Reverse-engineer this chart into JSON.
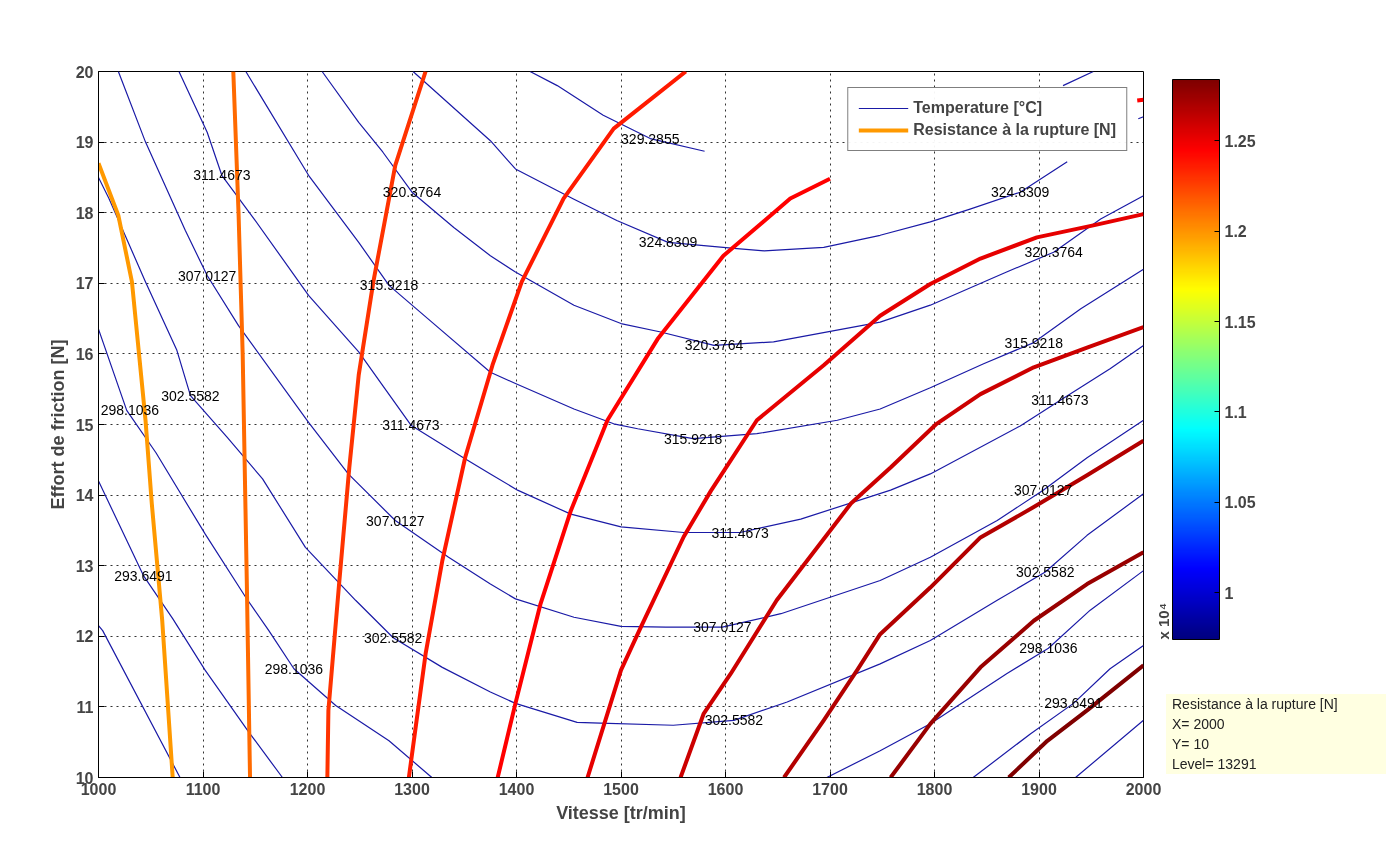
{
  "chart_data": {
    "type": "line",
    "xlabel": "Vitesse [tr/min]",
    "ylabel": "Effort de friction [N]",
    "clabel": "x 10⁴",
    "xlim": [
      1000,
      2000
    ],
    "ylim": [
      10,
      20
    ],
    "xticks": [
      1000,
      1100,
      1200,
      1300,
      1400,
      1500,
      1600,
      1700,
      1800,
      1900,
      2000
    ],
    "yticks": [
      10,
      11,
      12,
      13,
      14,
      15,
      16,
      17,
      18,
      19,
      20
    ],
    "clim": [
      0.974,
      1.284
    ],
    "cticks": [
      1,
      1.05,
      1.1,
      1.15,
      1.2,
      1.25
    ],
    "grid": true,
    "legend": "top right",
    "marker": "none",
    "line_style": "solid",
    "series": [
      {
        "name": "Temperature [°C]",
        "color": "#1a1aa6",
        "x": [
          1000,
          1004,
          1078,
          null,
          1935,
          2000
        ],
        "values": [
          12.15,
          12.08,
          10.0,
          null,
          10.0,
          10.81
        ]
      },
      {
        "color": "#1a1aa6",
        "x": [
          1000,
          1043,
          1071,
          1102,
          1144,
          1176,
          null,
          1837,
          1892,
          1933,
          1968,
          2000
        ],
        "values": [
          14.2,
          12.86,
          12.25,
          11.52,
          10.64,
          10.0,
          null,
          10.0,
          10.62,
          11.05,
          11.54,
          11.87
        ]
      },
      {
        "color": "#1a1aa6",
        "x": [
          1000,
          1027,
          1055,
          1102,
          1141,
          1163,
          1187,
          1227,
          1278,
          1319,
          null,
          1697,
          1748,
          1796,
          1869,
          1909,
          1949,
          2000
        ],
        "values": [
          16.35,
          15.2,
          14.6,
          13.45,
          12.55,
          12.08,
          11.54,
          11.02,
          10.52,
          10.0,
          null,
          10.0,
          10.38,
          10.76,
          11.47,
          11.83,
          12.37,
          12.93
        ]
      },
      {
        "color": "#1a1aa6",
        "x": [
          1000,
          1010,
          1045,
          1075,
          1088,
          1123,
          1157,
          1198,
          1246,
          1282,
          1329,
          1375,
          1399,
          1458,
          1480,
          1550,
          1608,
          1659,
          1748,
          1796,
          1860,
          1906,
          1946,
          2000
        ],
        "values": [
          18.5,
          18.2,
          17.02,
          16.05,
          15.41,
          14.82,
          14.23,
          13.26,
          12.51,
          11.98,
          11.56,
          11.21,
          11.05,
          10.78,
          10.77,
          10.74,
          10.81,
          11.07,
          11.61,
          11.94,
          12.51,
          12.91,
          13.43,
          14.02
        ]
      },
      {
        "color": "#1a1aa6",
        "x": [
          1019,
          1045,
          1083,
          1104,
          1134,
          1201,
          1239,
          1284,
          1335,
          1375,
          1399,
          1455,
          1500,
          1543,
          1597,
          1653,
          1748,
          1796,
          1860,
          1904,
          1946,
          2000
        ],
        "values": [
          20.0,
          19.0,
          17.75,
          17.11,
          16.4,
          15.03,
          14.3,
          13.64,
          13.12,
          12.74,
          12.53,
          12.27,
          12.14,
          12.13,
          12.13,
          12.32,
          12.79,
          13.12,
          13.64,
          14.07,
          14.53,
          15.06
        ]
      },
      {
        "color": "#1a1aa6",
        "x": [
          1077,
          1104,
          1118,
          1149,
          1201,
          1249,
          1272,
          1299,
          1348,
          1375,
          1401,
          1452,
          1500,
          1560,
          1614,
          1672,
          1758,
          1796,
          1882,
          1920,
          1968,
          2000
        ],
        "values": [
          20.0,
          19.14,
          18.53,
          17.91,
          16.83,
          16.03,
          15.55,
          14.99,
          14.54,
          14.3,
          14.07,
          13.73,
          13.55,
          13.47,
          13.47,
          13.66,
          14.07,
          14.3,
          14.98,
          15.34,
          15.79,
          16.12
        ]
      },
      {
        "color": "#1a1aa6",
        "x": [
          1141,
          1201,
          1249,
          1278,
          1319,
          1375,
          1399,
          1455,
          1493,
          1516,
          1569,
          1630,
          1707,
          1748,
          1796,
          1847,
          1895,
          1940,
          2000
        ],
        "values": [
          20.0,
          18.53,
          17.58,
          16.97,
          16.45,
          15.74,
          15.58,
          15.22,
          15.01,
          14.94,
          14.8,
          14.87,
          15.06,
          15.22,
          15.52,
          15.86,
          16.16,
          16.64,
          17.2
        ]
      },
      {
        "color": "#1a1aa6",
        "x": [
          1214,
          1249,
          1272,
          1300,
          1340,
          1375,
          1399,
          1455,
          1500,
          1538,
          1589,
          1646,
          1748,
          1796,
          1869,
          1914,
          1959,
          2000
        ],
        "values": [
          20.0,
          19.28,
          18.86,
          18.29,
          17.79,
          17.39,
          17.16,
          16.69,
          16.43,
          16.31,
          16.12,
          16.17,
          16.45,
          16.69,
          17.16,
          17.44,
          17.91,
          18.24
        ]
      },
      {
        "color": "#1a1aa6",
        "x": [
          1301,
          1375,
          1399,
          1455,
          1496,
          1545,
          1611,
          1637,
          1694,
          1748,
          1796,
          1834,
          1882,
          1927,
          null,
          1995,
          2000
        ],
        "values": [
          20.0,
          19.02,
          18.62,
          18.19,
          17.89,
          17.58,
          17.49,
          17.46,
          17.51,
          17.68,
          17.87,
          18.05,
          18.29,
          18.72,
          null,
          19.33,
          19.36
        ]
      },
      {
        "color": "#1a1aa6",
        "x": [
          1413,
          1439,
          1483,
          1528,
          1580,
          null,
          1923,
          1952
        ],
        "values": [
          20.0,
          19.8,
          19.38,
          19.05,
          18.87,
          null,
          19.8,
          20.0
        ]
      },
      {
        "name": "Resistance à la rupture [N]",
        "color": "#ff9900",
        "x": [
          1000,
          1019,
          1032,
          1045,
          1051,
          1061,
          1071
        ],
        "values": [
          18.7,
          17.96,
          17.02,
          15.06,
          13.88,
          12.22,
          10.0
        ]
      },
      {
        "color": "#ff6a00",
        "x": [
          1129,
          1134,
          1138,
          1142,
          1145
        ],
        "values": [
          20.0,
          18.0,
          15.98,
          12.7,
          10.0
        ]
      },
      {
        "color": "#ff3300",
        "x": [
          1313,
          1284,
          1263,
          1249,
          1240,
          1230,
          1220,
          1219
        ],
        "values": [
          20.0,
          18.67,
          17.02,
          15.7,
          14.39,
          12.7,
          10.95,
          10.0
        ]
      },
      {
        "color": "#ff1a00",
        "x": [
          1562,
          1493,
          1445,
          1405,
          1377,
          1351,
          1329,
          1313,
          1297
        ],
        "values": [
          20.0,
          19.19,
          18.2,
          17.02,
          15.84,
          14.54,
          13.07,
          11.75,
          10.0
        ]
      },
      {
        "color": "#ff0000",
        "x": [
          1382,
          1399,
          1423,
          1452,
          1487,
          1535,
          1598,
          1662,
          1700,
          null,
          1994,
          2000
        ],
        "values": [
          10.0,
          11.05,
          12.46,
          13.78,
          15.06,
          16.21,
          17.39,
          18.2,
          18.48,
          null,
          19.59,
          19.6
        ]
      },
      {
        "color": "#e60000",
        "x": [
          1468,
          1500,
          1519,
          1560,
          1586,
          1630,
          1694,
          1748,
          1796,
          1844,
          1898,
          1952,
          2000
        ],
        "values": [
          10.0,
          11.52,
          12.13,
          13.41,
          14.06,
          15.06,
          15.84,
          16.54,
          16.99,
          17.35,
          17.65,
          17.82,
          17.98
        ]
      },
      {
        "color": "#cc0000",
        "x": [
          1557,
          1579,
          1605,
          1649,
          1720,
          1758,
          1802,
          1844,
          1895,
          1946,
          2000
        ],
        "values": [
          10.0,
          10.9,
          11.47,
          12.51,
          13.88,
          14.39,
          15.01,
          15.43,
          15.81,
          16.09,
          16.38
        ]
      },
      {
        "color": "#b30000",
        "x": [
          1656,
          1694,
          1726,
          1748,
          1796,
          1844,
          1895,
          1946,
          2000
        ],
        "values": [
          10.0,
          10.81,
          11.52,
          12.03,
          12.69,
          13.4,
          13.83,
          14.28,
          14.77
        ]
      },
      {
        "color": "#990000",
        "x": [
          1758,
          1796,
          1844,
          1895,
          1946,
          2000
        ],
        "values": [
          10.0,
          10.76,
          11.56,
          12.22,
          12.74,
          13.19
        ]
      },
      {
        "color": "#800000",
        "x": [
          1871,
          1908,
          1946,
          2000
        ],
        "values": [
          10.0,
          10.52,
          10.95,
          11.59
        ]
      }
    ],
    "annotations": [
      {
        "text": "293.6491",
        "x": 1043,
        "y": 12.86
      },
      {
        "text": "293.6491",
        "x": 1933,
        "y": 11.05
      },
      {
        "text": "298.1036",
        "x": 1030,
        "y": 15.2
      },
      {
        "text": "298.1036",
        "x": 1187,
        "y": 11.54
      },
      {
        "text": "298.1036",
        "x": 1909,
        "y": 11.83
      },
      {
        "text": "302.5582",
        "x": 1088,
        "y": 15.41
      },
      {
        "text": "302.5582",
        "x": 1282,
        "y": 11.98
      },
      {
        "text": "302.5582",
        "x": 1608,
        "y": 10.81
      },
      {
        "text": "302.5582",
        "x": 1906,
        "y": 12.91
      },
      {
        "text": "307.0127",
        "x": 1104,
        "y": 17.11
      },
      {
        "text": "307.0127",
        "x": 1284,
        "y": 13.64
      },
      {
        "text": "307.0127",
        "x": 1597,
        "y": 12.13
      },
      {
        "text": "307.0127",
        "x": 1904,
        "y": 14.07
      },
      {
        "text": "311.4673",
        "x": 1118,
        "y": 18.53
      },
      {
        "text": "311.4673",
        "x": 1299,
        "y": 14.99
      },
      {
        "text": "311.4673",
        "x": 1614,
        "y": 13.47
      },
      {
        "text": "311.4673",
        "x": 1920,
        "y": 15.34
      },
      {
        "text": "315.9218",
        "x": 1278,
        "y": 16.97
      },
      {
        "text": "315.9218",
        "x": 1569,
        "y": 14.8
      },
      {
        "text": "315.9218",
        "x": 1895,
        "y": 16.16
      },
      {
        "text": "320.3764",
        "x": 1300,
        "y": 18.29
      },
      {
        "text": "320.3764",
        "x": 1589,
        "y": 16.12
      },
      {
        "text": "320.3764",
        "x": 1914,
        "y": 17.44
      },
      {
        "text": "324.8309",
        "x": 1545,
        "y": 17.58
      },
      {
        "text": "324.8309",
        "x": 1882,
        "y": 18.29
      },
      {
        "text": "329.2855",
        "x": 1528,
        "y": 19.05
      },
      "Resistance à la rupture [N]",
      "X= 2000",
      "Y= 10",
      "Level= 13291"
    ]
  }
}
